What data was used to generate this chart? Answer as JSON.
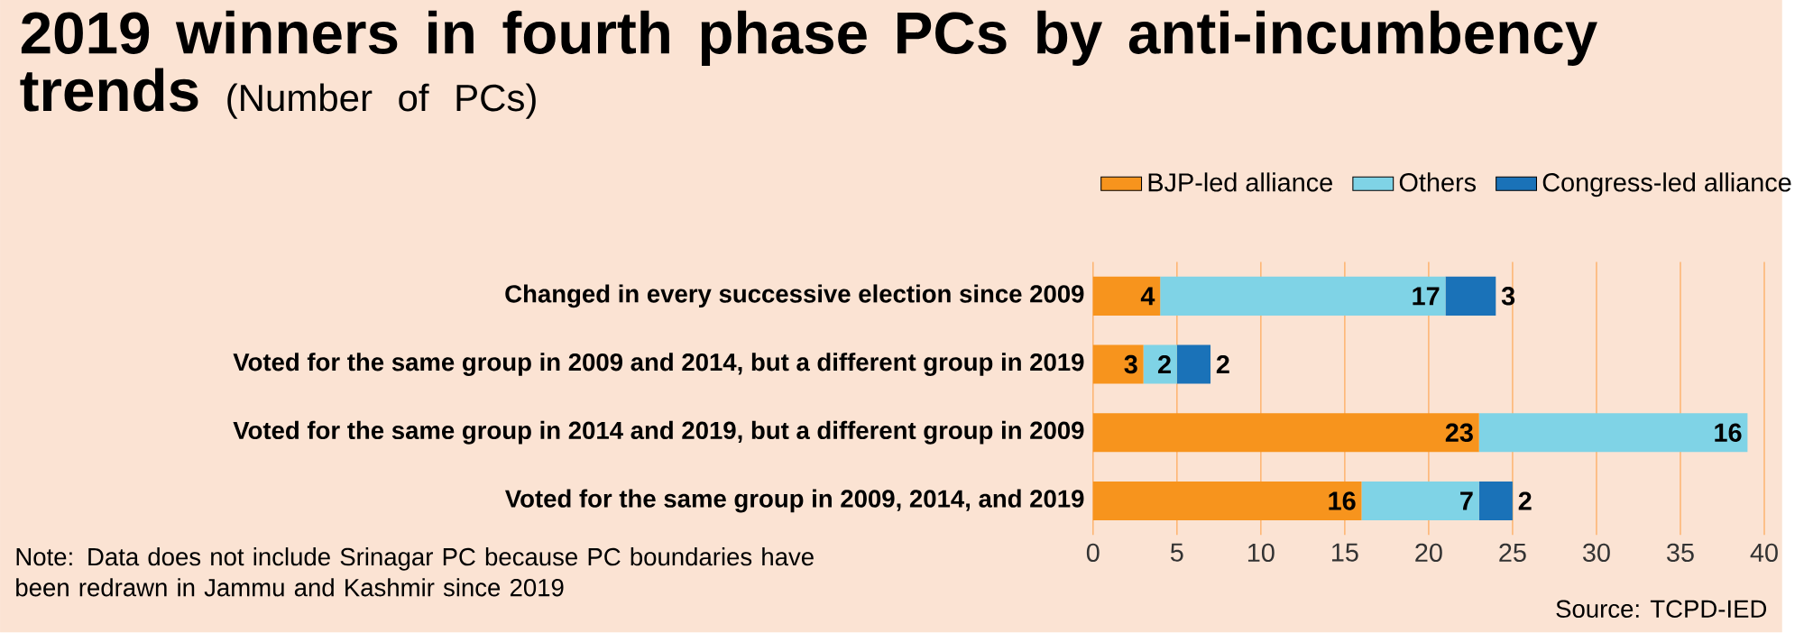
{
  "chart_data": {
    "type": "bar",
    "orientation": "horizontal",
    "stacked": true,
    "title": "2019 winners in fourth phase PCs by anti-incumbency trends",
    "subtitle": "(Number of PCs)",
    "categories": [
      "Changed in every successive election since 2009",
      "Voted for the same group in 2009 and 2014, but a different group in 2019",
      "Voted for the same group in 2014 and 2019, but a different group in 2009",
      "Voted for the same group in 2009, 2014, and 2019"
    ],
    "series": [
      {
        "name": "BJP-led alliance",
        "color": "#f7941d",
        "values": [
          4,
          3,
          23,
          16
        ]
      },
      {
        "name": "Others",
        "color": "#7fd3e6",
        "values": [
          17,
          2,
          16,
          7
        ]
      },
      {
        "name": "Congress-led alliance",
        "color": "#1a72b8",
        "values": [
          3,
          2,
          null,
          2
        ]
      }
    ],
    "xlim": [
      0,
      40
    ],
    "xticks": [
      0,
      5,
      10,
      15,
      20,
      25,
      30,
      35,
      40
    ],
    "data_labels": true,
    "legend": "top",
    "grid": "x",
    "annotations": [
      "Note: Data does not include Srinagar PC because PC boundaries have been redrawn in Jammu and Kashmir since 2019",
      "Source: TCPD-IED"
    ]
  }
}
